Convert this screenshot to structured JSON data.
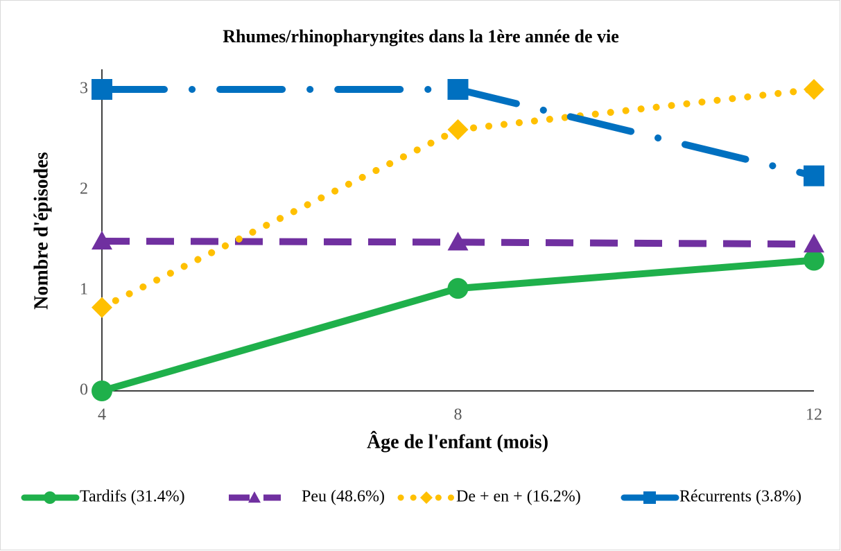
{
  "chart_data": {
    "type": "line",
    "title": "Rhumes/rhinopharyngites dans la 1ère année de vie",
    "x_label": "Âge de l'enfant (mois)",
    "y_label": "Nombre d'épisodes",
    "x": [
      4,
      8,
      12
    ],
    "xlim": [
      4,
      12
    ],
    "xticks": [
      4,
      8,
      12
    ],
    "ylim": [
      0,
      3
    ],
    "yticks": [
      0,
      1,
      2,
      3
    ],
    "legend": "bottom",
    "series": [
      {
        "name": "Tardifs (31.4%)",
        "color": "#1fb04b",
        "dash": "solid",
        "marker": "circle",
        "values": [
          0,
          1.02,
          1.3
        ]
      },
      {
        "name": "Peu (48.6%)",
        "color": "#7030a0",
        "dash": "long-dash",
        "marker": "triangle",
        "values": [
          1.49,
          1.48,
          1.46
        ]
      },
      {
        "name": "De + en + (16.2%)",
        "color": "#ffc000",
        "dash": "dot",
        "marker": "diamond",
        "values": [
          0.83,
          2.6,
          3.0
        ]
      },
      {
        "name": "Récurrents (3.8%)",
        "color": "#0070c0",
        "dash": "dash-dot",
        "marker": "square",
        "values": [
          3.0,
          3.0,
          2.14
        ]
      }
    ]
  }
}
